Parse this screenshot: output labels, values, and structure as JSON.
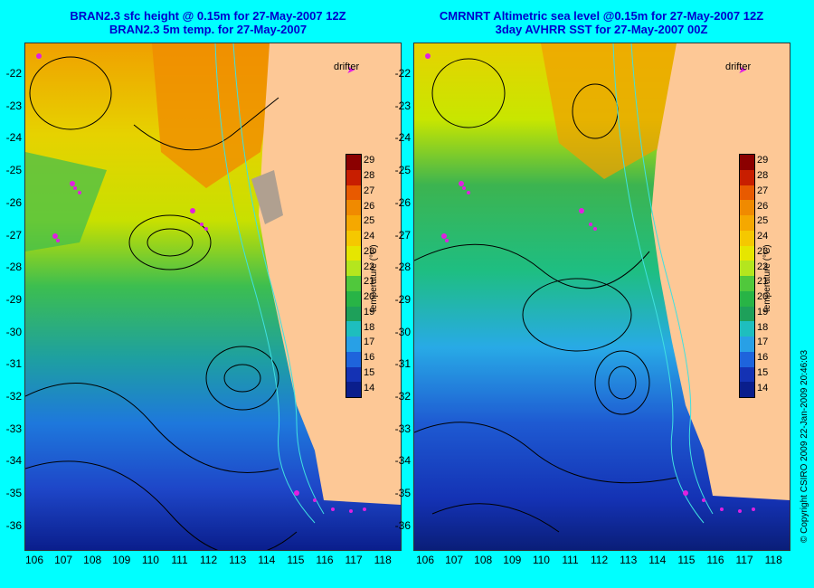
{
  "left": {
    "title_line1": "BRAN2.3 sfc height @ 0.15m for 27-May-2007 12Z",
    "title_line2": "BRAN2.3 5m temp. for 27-May-2007"
  },
  "right": {
    "title_line1": "CMRNRT Altimetric sea level  @0.15m  for 27-May-2007 12Z",
    "title_line2": "3day AVHRR SST for 27-May-2007 00Z"
  },
  "drifter_label": "drifter",
  "colorbar": {
    "title": "temperature (°C)",
    "ticks": [
      "29",
      "28",
      "27",
      "26",
      "25",
      "24",
      "23",
      "22",
      "21",
      "20",
      "19",
      "18",
      "17",
      "16",
      "15",
      "14"
    ],
    "colors": [
      "#8b0000",
      "#c81e00",
      "#e85a00",
      "#f08a00",
      "#f5a800",
      "#f5c800",
      "#e6e600",
      "#b4e61e",
      "#50c83c",
      "#28b446",
      "#1ea05a",
      "#1ebebe",
      "#28a0e6",
      "#1e64dc",
      "#1432b4",
      "#0a1e8c"
    ]
  },
  "lat_ticks": [
    "-22",
    "-23",
    "-24",
    "-25",
    "-26",
    "-27",
    "-28",
    "-29",
    "-30",
    "-31",
    "-32",
    "-33",
    "-34",
    "-35",
    "-36"
  ],
  "lon_ticks": [
    "106",
    "107",
    "108",
    "109",
    "110",
    "111",
    "112",
    "113",
    "114",
    "115",
    "116",
    "117",
    "118"
  ],
  "copyright": "© Copyright CSIRO 2009   22-Jan-2009 20:46:03"
}
